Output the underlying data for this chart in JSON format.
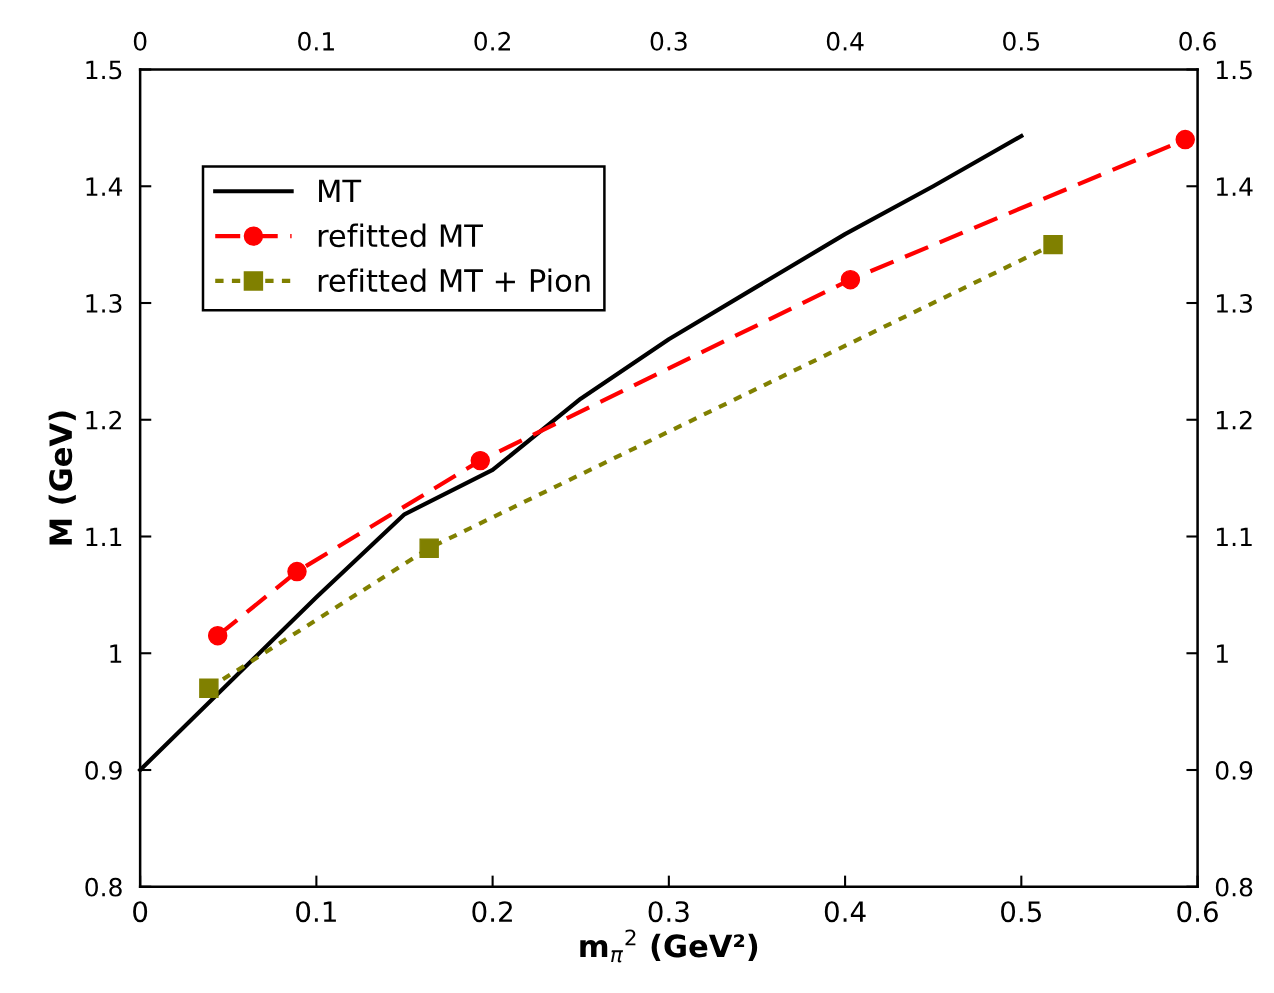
{
  "chart_data": {
    "type": "line",
    "xlabel": "m$_{π}$$^{2}$ (GeV²)",
    "ylabel": "M (GeV)",
    "xlim": [
      0,
      0.6
    ],
    "xticks": [
      0,
      0.1,
      0.2,
      0.3,
      0.4,
      0.5,
      0.6
    ],
    "x2lim": [
      0,
      0.6
    ],
    "x2ticks": [
      0,
      0.1,
      0.2,
      0.3,
      0.4,
      0.5,
      0.6
    ],
    "ylim": [
      0.8,
      1.5
    ],
    "yticks": [
      0.8,
      0.9,
      {
        "value": 1,
        "label": "1"
      },
      1.1,
      1.2,
      1.3,
      1.4,
      1.5
    ],
    "y2lim": [
      0.8,
      1.5
    ],
    "y2ticks": [
      0.8,
      0.9,
      {
        "value": 1,
        "label": "1"
      },
      1.1,
      1.2,
      1.3,
      1.4,
      1.5
    ],
    "legend": "top left",
    "grid": false,
    "series": [
      {
        "name": "MT",
        "color": "#000000",
        "marker": "none",
        "line_style": "solid",
        "x": [
          0,
          0.1,
          0.15,
          0.2,
          0.25,
          0.3,
          0.35,
          0.4,
          0.45,
          0.5
        ],
        "values": [
          0.9,
          1.048,
          1.119,
          1.157,
          1.218,
          1.269,
          1.314,
          1.359,
          1.4,
          1.443
        ]
      },
      {
        "name": "refitted MT",
        "color": "#ff0000",
        "marker": "circle",
        "line_style": "dashed",
        "x": [
          0.044,
          0.089,
          0.193,
          0.403,
          0.593
        ],
        "values": [
          1.015,
          1.07,
          1.165,
          1.32,
          1.44
        ]
      },
      {
        "name": "refitted MT + Pion",
        "color": "#808000",
        "marker": "square",
        "line_style": "dotted",
        "x": [
          0.039,
          0.164,
          0.518
        ],
        "values": [
          0.97,
          1.09,
          1.35
        ]
      }
    ]
  }
}
